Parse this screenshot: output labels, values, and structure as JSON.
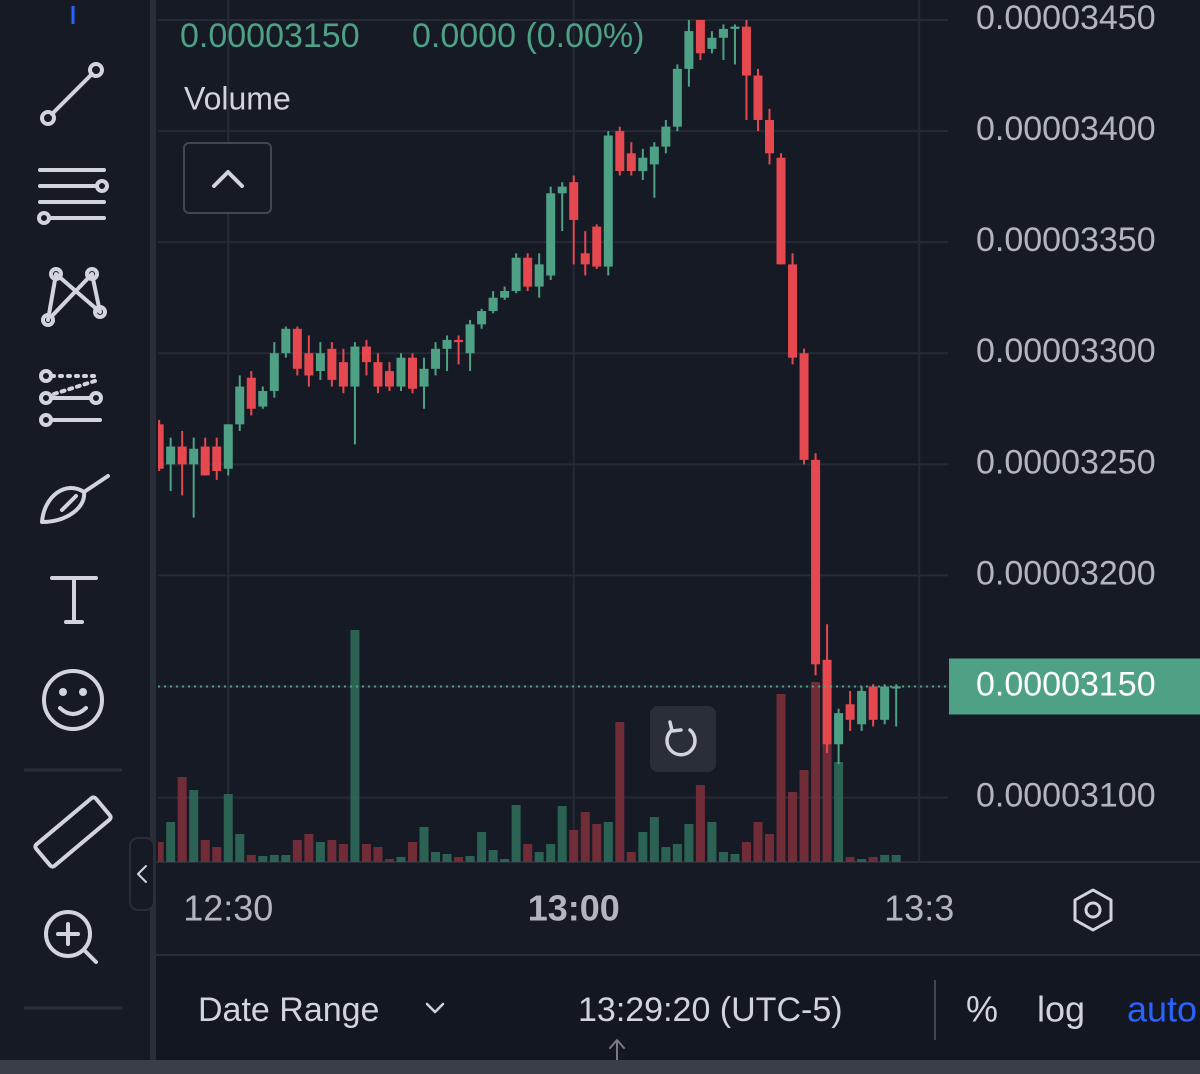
{
  "chart_data": {
    "type": "candlestick",
    "header_price": "0.00003150",
    "header_change": "0.0000 (0.00%)",
    "volume_label": "Volume",
    "up_color": "#4fa186",
    "down_color": "#e5484f",
    "volume_up_color": "#2d6a5a",
    "volume_down_color": "#7a2f3a",
    "grid": true,
    "x": [
      744,
      745,
      746,
      747,
      748,
      749,
      750,
      751,
      752,
      753,
      754,
      755,
      756,
      757,
      758,
      759,
      760,
      761,
      762,
      763,
      764,
      765,
      766,
      767,
      768,
      769,
      770,
      771,
      772,
      773,
      774,
      775,
      776,
      777,
      778,
      779,
      780,
      781,
      782,
      783,
      784,
      785,
      786,
      787,
      788,
      789,
      790,
      791,
      792,
      793,
      794,
      795,
      796,
      797,
      798,
      799,
      800,
      801,
      802,
      803,
      804,
      805,
      806,
      807,
      808
    ],
    "open": [
      3.268e-05,
      3.25e-05,
      3.258e-05,
      3.25e-05,
      3.258e-05,
      3.258e-05,
      3.248e-05,
      3.268e-05,
      3.289e-05,
      3.276e-05,
      3.283e-05,
      3.3e-05,
      3.311e-05,
      3.3e-05,
      3.292e-05,
      3.302e-05,
      3.296e-05,
      3.285e-05,
      3.303e-05,
      3.296e-05,
      3.292e-05,
      3.285e-05,
      3.298e-05,
      3.285e-05,
      3.293e-05,
      3.302e-05,
      3.306e-05,
      3.3e-05,
      3.313e-05,
      3.319e-05,
      3.325e-05,
      3.328e-05,
      3.343e-05,
      3.33e-05,
      3.335e-05,
      3.372e-05,
      3.377e-05,
      3.345e-05,
      3.357e-05,
      3.339e-05,
      3.4e-05,
      3.39e-05,
      3.382e-05,
      3.385e-05,
      3.393e-05,
      3.402e-05,
      3.428e-05,
      3.45e-05,
      3.437e-05,
      3.442e-05,
      3.446e-05,
      3.447e-05,
      3.425e-05,
      3.405e-05,
      3.388e-05,
      3.34e-05,
      3.3e-05,
      3.252e-05,
      3.162e-05,
      3.124e-05,
      3.142e-05,
      3.133e-05,
      3.15e-05,
      3.135e-05,
      3.15e-05
    ],
    "high": [
      3.27e-05,
      3.262e-05,
      3.265e-05,
      3.262e-05,
      3.262e-05,
      3.262e-05,
      3.268e-05,
      3.29e-05,
      3.292e-05,
      3.285e-05,
      3.305e-05,
      3.312e-05,
      3.312e-05,
      3.308e-05,
      3.305e-05,
      3.305e-05,
      3.302e-05,
      3.305e-05,
      3.306e-05,
      3.3e-05,
      3.296e-05,
      3.3e-05,
      3.3e-05,
      3.298e-05,
      3.305e-05,
      3.308e-05,
      3.308e-05,
      3.315e-05,
      3.32e-05,
      3.328e-05,
      3.33e-05,
      3.345e-05,
      3.345e-05,
      3.345e-05,
      3.375e-05,
      3.377e-05,
      3.38e-05,
      3.355e-05,
      3.358e-05,
      3.4e-05,
      3.402e-05,
      3.395e-05,
      3.392e-05,
      3.395e-05,
      3.405e-05,
      3.43e-05,
      3.45e-05,
      3.45e-05,
      3.445e-05,
      3.448e-05,
      3.448e-05,
      3.45e-05,
      3.428e-05,
      3.41e-05,
      3.39e-05,
      3.345e-05,
      3.302e-05,
      3.255e-05,
      3.178e-05,
      3.14e-05,
      3.148e-05,
      3.15e-05,
      3.151e-05,
      3.151e-05,
      3.151e-05
    ],
    "low": [
      3.247e-05,
      3.238e-05,
      3.236e-05,
      3.226e-05,
      3.245e-05,
      3.243e-05,
      3.245e-05,
      3.265e-05,
      3.272e-05,
      3.275e-05,
      3.28e-05,
      3.298e-05,
      3.29e-05,
      3.285e-05,
      3.288e-05,
      3.285e-05,
      3.282e-05,
      3.259e-05,
      3.29e-05,
      3.282e-05,
      3.283e-05,
      3.283e-05,
      3.282e-05,
      3.275e-05,
      3.29e-05,
      3.292e-05,
      3.295e-05,
      3.292e-05,
      3.311e-05,
      3.318e-05,
      3.324e-05,
      3.327e-05,
      3.328e-05,
      3.325e-05,
      3.333e-05,
      3.355e-05,
      3.34e-05,
      3.335e-05,
      3.338e-05,
      3.335e-05,
      3.38e-05,
      3.38e-05,
      3.378e-05,
      3.37e-05,
      3.39e-05,
      3.4e-05,
      3.42e-05,
      3.432e-05,
      3.435e-05,
      3.432e-05,
      3.43e-05,
      3.405e-05,
      3.4e-05,
      3.385e-05,
      3.34e-05,
      3.295e-05,
      3.25e-05,
      3.155e-05,
      3.12e-05,
      3.115e-05,
      3.13e-05,
      3.13e-05,
      3.132e-05,
      3.133e-05,
      3.132e-05
    ],
    "close": [
      3.248e-05,
      3.258e-05,
      3.25e-05,
      3.257e-05,
      3.245e-05,
      3.247e-05,
      3.268e-05,
      3.285e-05,
      3.275e-05,
      3.283e-05,
      3.3e-05,
      3.311e-05,
      3.293e-05,
      3.29e-05,
      3.3e-05,
      3.288e-05,
      3.285e-05,
      3.303e-05,
      3.296e-05,
      3.285e-05,
      3.285e-05,
      3.298e-05,
      3.284e-05,
      3.293e-05,
      3.302e-05,
      3.306e-05,
      3.305e-05,
      3.313e-05,
      3.319e-05,
      3.325e-05,
      3.328e-05,
      3.343e-05,
      3.33e-05,
      3.34e-05,
      3.372e-05,
      3.375e-05,
      3.36e-05,
      3.34e-05,
      3.339e-05,
      3.398e-05,
      3.382e-05,
      3.382e-05,
      3.388e-05,
      3.393e-05,
      3.402e-05,
      3.428e-05,
      3.445e-05,
      3.435e-05,
      3.442e-05,
      3.446e-05,
      3.447e-05,
      3.425e-05,
      3.405e-05,
      3.39e-05,
      3.34e-05,
      3.298e-05,
      3.252e-05,
      3.16e-05,
      3.124e-05,
      3.138e-05,
      3.135e-05,
      3.148e-05,
      3.135e-05,
      3.15e-05,
      3.15e-05
    ],
    "volume": [
      20,
      40,
      85,
      72,
      22,
      15,
      68,
      28,
      7,
      6,
      7,
      7,
      22,
      28,
      20,
      22,
      18,
      232,
      18,
      15,
      3,
      5,
      20,
      35,
      10,
      8,
      5,
      6,
      30,
      12,
      3,
      57,
      18,
      10,
      18,
      56,
      32,
      50,
      38,
      40,
      140,
      10,
      30,
      45,
      15,
      18,
      38,
      77,
      40,
      10,
      8,
      20,
      40,
      28,
      168,
      70,
      92,
      180,
      120,
      100,
      5,
      3,
      5,
      7,
      7
    ],
    "volume_ylim": [
      0,
      260
    ],
    "xlim": [
      743.9,
      812.5
    ],
    "xticks": [
      {
        "value": 750,
        "label": "12:30"
      },
      {
        "value": 780,
        "label": "13:00"
      },
      {
        "value": 810,
        "label": "13:3"
      }
    ],
    "ylim": [
      3.071e-05,
      3.459e-05
    ],
    "yticks": [
      {
        "value": 3.1e-05,
        "label": "0.00003100"
      },
      {
        "value": 3.15e-05,
        "label": "0.00003150"
      },
      {
        "value": 3.2e-05,
        "label": "0.00003200"
      },
      {
        "value": 3.25e-05,
        "label": "0.00003250"
      },
      {
        "value": 3.3e-05,
        "label": "0.00003300"
      },
      {
        "value": 3.35e-05,
        "label": "0.00003350"
      },
      {
        "value": 3.4e-05,
        "label": "0.00003400"
      },
      {
        "value": 3.45e-05,
        "label": "0.00003450"
      }
    ],
    "last_price": {
      "value": 3.15e-05,
      "label": "0.00003150"
    },
    "date_range": "Date Range",
    "clock": "13:29:20 (UTC-5)",
    "percent": "%",
    "log": "log",
    "auto": "auto"
  }
}
